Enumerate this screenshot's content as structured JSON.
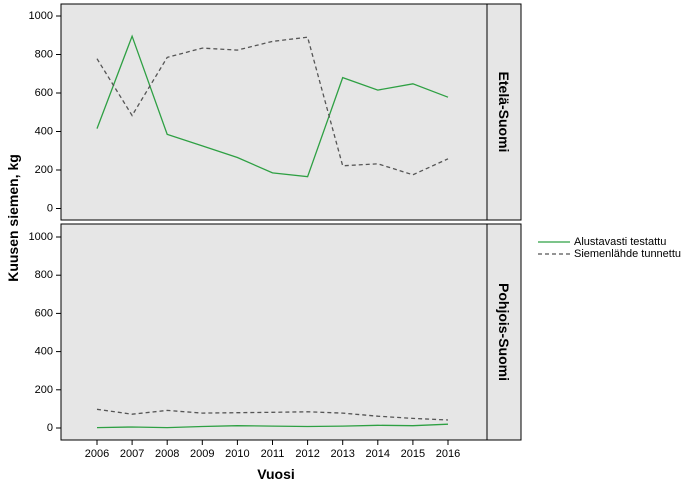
{
  "chart_data": {
    "type": "line",
    "xlabel": "Vuosi",
    "ylabel": "Kuusen siemen, kg",
    "x": [
      "2006",
      "2007",
      "2008",
      "2009",
      "2010",
      "2011",
      "2012",
      "2013",
      "2014",
      "2015",
      "2016"
    ],
    "ylim": [
      0,
      1000
    ],
    "yticks": [
      0,
      200,
      400,
      600,
      800,
      1000
    ],
    "legend_position": "right",
    "grid": false,
    "panels": [
      {
        "name": "Etelä-Suomi",
        "series": [
          {
            "name": "Alustavasti testattu",
            "values": [
              415,
              895,
              385,
              325,
              265,
              185,
              165,
              680,
              615,
              648,
              578
            ]
          },
          {
            "name": "Siemenlähde tunnettu",
            "values": [
              778,
              483,
              785,
              833,
              823,
              868,
              890,
              222,
              232,
              175,
              258
            ]
          }
        ]
      },
      {
        "name": "Pohjois-Suomi",
        "series": [
          {
            "name": "Alustavasti testattu",
            "values": [
              2,
              5,
              2,
              8,
              12,
              10,
              8,
              10,
              14,
              12,
              20
            ]
          },
          {
            "name": "Siemenlähde tunnettu",
            "values": [
              98,
              72,
              92,
              78,
              80,
              82,
              85,
              78,
              62,
              50,
              42
            ]
          }
        ]
      }
    ],
    "series_styles": [
      {
        "name": "Alustavasti testattu",
        "color": "#2ea043",
        "dash": "solid"
      },
      {
        "name": "Siemenlähde tunnettu",
        "color": "#555555",
        "dash": "dashed"
      }
    ],
    "panel_background": "#e6e6e6"
  }
}
